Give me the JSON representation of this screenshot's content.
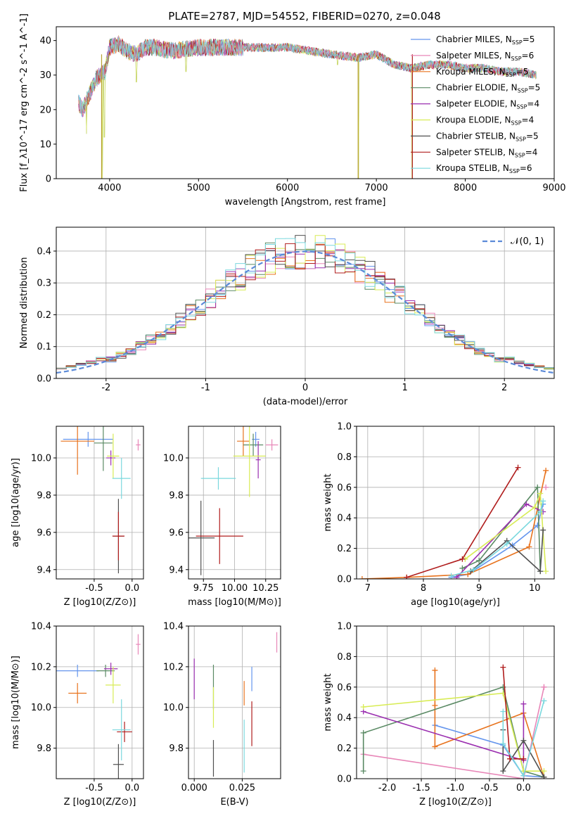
{
  "title": "PLATE=2787, MJD=54552, FIBERID=0270, z=0.048",
  "colors": [
    "#6495ed",
    "#e887b8",
    "#e8731e",
    "#5a8a64",
    "#9b30b0",
    "#d8ec55",
    "#505050",
    "#b01d1d",
    "#7ad8de"
  ],
  "legend_names": [
    "Chabrier MILES, N",
    "Salpeter MILES, N",
    "Kroupa MILES, N",
    "Chabrier ELODIE, N",
    "Salpeter ELODIE, N",
    "Kroupa ELODIE, N",
    "Chabrier STELIB, N",
    "Salpeter STELIB, N",
    "Kroupa STELIB, N"
  ],
  "legend_sub": "SSP",
  "legend_nssp": [
    "=5",
    "=6",
    "=5",
    "=5",
    "=4",
    "=4",
    "=5",
    "=4",
    "=6"
  ],
  "gauss_legend": "𝒩(0, 1)",
  "chart_data": [
    {
      "id": "spectrum",
      "type": "line",
      "xlabel": "wavelength [Angstrom, rest frame]",
      "ylabel": "Flux [f_λ10^-17 erg cm^-2 s^-1 A^-1]",
      "xlim": [
        3400,
        9000
      ],
      "ylim": [
        0,
        44
      ],
      "xticks": [
        4000,
        5000,
        6000,
        7000,
        8000,
        9000
      ],
      "yticks": [
        0,
        10,
        20,
        30,
        40
      ],
      "grid": false,
      "legend": "top-right",
      "continuum_x": [
        3650,
        3700,
        3800,
        3850,
        3900,
        3950,
        4000,
        4100,
        4200,
        4300,
        4400,
        4500,
        4700,
        5000,
        5200,
        5500,
        6000,
        6500,
        6800,
        7000,
        7200,
        7400,
        7600,
        7800,
        8000,
        8200,
        8400,
        8600,
        8800
      ],
      "continuum_y": [
        22,
        20,
        26,
        29,
        30,
        31,
        38,
        39,
        37,
        36,
        38,
        38,
        37,
        38,
        38,
        38,
        38,
        36,
        35,
        36,
        33,
        32,
        33,
        33,
        32,
        32,
        31,
        31,
        30
      ],
      "spikes": [
        [
          3920,
          0
        ],
        [
          3940,
          12
        ],
        [
          4300,
          28
        ],
        [
          4860,
          31
        ],
        [
          6563,
          33
        ],
        [
          6800,
          0
        ],
        [
          7400,
          0
        ],
        [
          3740,
          13
        ]
      ]
    },
    {
      "id": "residuals",
      "type": "step",
      "xlabel": "(data-model)/error",
      "ylabel": "Normed distribution",
      "xlim": [
        -2.5,
        2.5
      ],
      "ylim": [
        0,
        0.475
      ],
      "xticks": [
        -2,
        -1,
        0,
        1,
        2
      ],
      "yticks": [
        0.0,
        0.1,
        0.2,
        0.3,
        0.4
      ],
      "grid": true,
      "legend": "top-right",
      "bin_width": 0.1
    },
    {
      "id": "age_vs_Z",
      "type": "errorbar",
      "xlabel": "Z [log10(Z/Z⊙)]",
      "ylabel": "age [log10(age/yr)]",
      "xlim": [
        -1.0,
        0.15
      ],
      "ylim": [
        9.35,
        10.17
      ],
      "xticks": [
        -0.5,
        0.0
      ],
      "yticks": [
        9.4,
        9.6,
        9.8,
        10.0
      ],
      "grid": true,
      "points": [
        {
          "x": -0.58,
          "y": 10.1,
          "xerr": 0.33,
          "yerr": 0.04
        },
        {
          "x": 0.08,
          "y": 10.07,
          "xerr": 0.03,
          "yerr": 0.03
        },
        {
          "x": -0.72,
          "y": 10.09,
          "xerr": 0.22,
          "yerr": 0.18
        },
        {
          "x": -0.38,
          "y": 10.08,
          "xerr": 0.12,
          "yerr": 0.15
        },
        {
          "x": -0.28,
          "y": 10.0,
          "xerr": 0.06,
          "yerr": 0.04
        },
        {
          "x": -0.25,
          "y": 10.01,
          "xerr": 0.08,
          "yerr": 0.12
        },
        {
          "x": -0.18,
          "y": 9.58,
          "xerr": 0.07,
          "yerr": 0.2
        },
        {
          "x": -0.18,
          "y": 9.58,
          "xerr": 0.08,
          "yerr": 0.13
        },
        {
          "x": -0.14,
          "y": 9.89,
          "xerr": 0.12,
          "yerr": 0.11
        }
      ]
    },
    {
      "id": "age_vs_mass",
      "type": "errorbar",
      "xlabel": "mass [log10(M/M⊙)]",
      "ylabel": "",
      "xlim": [
        9.63,
        10.37
      ],
      "ylim": [
        9.35,
        10.17
      ],
      "xticks": [
        9.75,
        10.0,
        10.25
      ],
      "yticks": [
        9.4,
        9.6,
        9.8,
        10.0
      ],
      "grid": true,
      "points": [
        {
          "x": 10.17,
          "y": 10.1,
          "xerr": 0.03,
          "yerr": 0.04
        },
        {
          "x": 10.3,
          "y": 10.07,
          "xerr": 0.05,
          "yerr": 0.03
        },
        {
          "x": 10.07,
          "y": 10.09,
          "xerr": 0.05,
          "yerr": 0.08
        },
        {
          "x": 10.15,
          "y": 10.07,
          "xerr": 0.08,
          "yerr": 0.06
        },
        {
          "x": 10.19,
          "y": 9.99,
          "xerr": 0.02,
          "yerr": 0.1
        },
        {
          "x": 10.12,
          "y": 10.01,
          "xerr": 0.13,
          "yerr": 0.22
        },
        {
          "x": 9.73,
          "y": 9.57,
          "xerr": 0.11,
          "yerr": 0.2
        },
        {
          "x": 9.88,
          "y": 9.58,
          "xerr": 0.19,
          "yerr": 0.15
        },
        {
          "x": 9.87,
          "y": 9.89,
          "xerr": 0.14,
          "yerr": 0.06
        }
      ]
    },
    {
      "id": "weight_vs_age",
      "type": "line",
      "xlabel": "age [log10(age/yr)]",
      "ylabel": "mass weight",
      "xlim": [
        6.8,
        10.35
      ],
      "ylim": [
        0,
        1
      ],
      "xticks": [
        7,
        8,
        9,
        10
      ],
      "yticks": [
        0.0,
        0.2,
        0.4,
        0.6,
        0.8,
        1.0
      ],
      "grid": true,
      "series": [
        {
          "x": [
            8.5,
            8.8,
            9.6,
            10.05,
            10.15
          ],
          "y": [
            0.01,
            0.03,
            0.22,
            0.35,
            0.49
          ]
        },
        {
          "x": [
            10.2
          ],
          "y": [
            0.6
          ]
        },
        {
          "x": [
            6.9,
            7.7,
            8.8,
            9.9,
            10.2
          ],
          "y": [
            0.0,
            0.01,
            0.03,
            0.21,
            0.71
          ]
        },
        {
          "x": [
            8.7,
            9.0,
            10.05,
            10.1
          ],
          "y": [
            0.07,
            0.12,
            0.6,
            0.05
          ]
        },
        {
          "x": [
            8.6,
            9.85,
            10.15
          ],
          "y": [
            0.01,
            0.49,
            0.44
          ]
        },
        {
          "x": [
            8.75,
            10.0,
            10.1,
            10.2
          ],
          "y": [
            0.13,
            0.47,
            0.56,
            0.05
          ]
        },
        {
          "x": [
            8.85,
            9.5,
            10.1,
            10.15
          ],
          "y": [
            0.05,
            0.25,
            0.05,
            0.32
          ]
        },
        {
          "x": [
            7.7,
            8.7,
            9.7
          ],
          "y": [
            0.01,
            0.13,
            0.73
          ]
        },
        {
          "x": [
            8.5,
            8.9,
            9.5,
            10.1,
            10.15
          ],
          "y": [
            0.02,
            0.06,
            0.23,
            0.44,
            0.51
          ]
        }
      ]
    },
    {
      "id": "mass_vs_Z",
      "type": "errorbar",
      "xlabel": "Z [log10(Z/Z⊙)]",
      "ylabel": "mass [log10(M/M⊙)]",
      "xlim": [
        -1.0,
        0.15
      ],
      "ylim": [
        9.65,
        10.4
      ],
      "xticks": [
        -0.5,
        0.0
      ],
      "yticks": [
        9.8,
        10.0,
        10.2,
        10.4
      ],
      "grid": true,
      "points": [
        {
          "x": -0.72,
          "y": 10.18,
          "xerr": 0.28,
          "yerr": 0.03
        },
        {
          "x": 0.08,
          "y": 10.31,
          "xerr": 0.03,
          "yerr": 0.05
        },
        {
          "x": -0.72,
          "y": 10.07,
          "xerr": 0.12,
          "yerr": 0.05
        },
        {
          "x": -0.35,
          "y": 10.18,
          "xerr": 0.12,
          "yerr": 0.03
        },
        {
          "x": -0.28,
          "y": 10.19,
          "xerr": 0.09,
          "yerr": 0.03
        },
        {
          "x": -0.25,
          "y": 10.11,
          "xerr": 0.1,
          "yerr": 0.09
        },
        {
          "x": -0.18,
          "y": 9.72,
          "xerr": 0.07,
          "yerr": 0.1
        },
        {
          "x": -0.1,
          "y": 9.88,
          "xerr": 0.1,
          "yerr": 0.05
        },
        {
          "x": -0.14,
          "y": 9.89,
          "xerr": 0.12,
          "yerr": 0.15
        }
      ]
    },
    {
      "id": "mass_vs_EBV",
      "type": "errorbar",
      "xlabel": "E(B-V)",
      "ylabel": "",
      "xlim": [
        -0.003,
        0.045
      ],
      "ylim": [
        9.65,
        10.4
      ],
      "xticks": [
        0.0,
        0.025
      ],
      "yticks": [
        9.8,
        10.0,
        10.2,
        10.4
      ],
      "grid": true,
      "points": [
        {
          "x": 0.03,
          "y": 10.14,
          "xerr": 0,
          "yerr": 0.06
        },
        {
          "x": 0.043,
          "y": 10.32,
          "xerr": 0,
          "yerr": 0.05
        },
        {
          "x": 0.026,
          "y": 10.07,
          "xerr": 0,
          "yerr": 0.06
        },
        {
          "x": 0.01,
          "y": 10.1,
          "xerr": 0,
          "yerr": 0.11
        },
        {
          "x": 0.0,
          "y": 10.14,
          "xerr": 0,
          "yerr": 0.1
        },
        {
          "x": 0.01,
          "y": 10.0,
          "xerr": 0,
          "yerr": 0.1
        },
        {
          "x": 0.01,
          "y": 9.75,
          "xerr": 0,
          "yerr": 0.09
        },
        {
          "x": 0.03,
          "y": 9.92,
          "xerr": 0,
          "yerr": 0.11
        },
        {
          "x": 0.026,
          "y": 9.81,
          "xerr": 0,
          "yerr": 0.13
        }
      ]
    },
    {
      "id": "weight_vs_Z",
      "type": "line",
      "xlabel": "Z [log10(Z/Z⊙)]",
      "ylabel": "mass weight",
      "xlim": [
        -2.45,
        0.45
      ],
      "ylim": [
        0,
        1
      ],
      "xticks": [
        -2.0,
        -1.5,
        -1.0,
        -0.5,
        0.0
      ],
      "yticks": [
        0.0,
        0.2,
        0.4,
        0.6,
        0.8,
        1.0
      ],
      "grid": true,
      "series": [
        {
          "x": [
            -1.3,
            -0.3,
            0.0,
            0.3
          ],
          "y": [
            0.35,
            0.22,
            0.02,
            0.01
          ]
        },
        {
          "x": [
            -2.35,
            0.0,
            0.3,
            0.3
          ],
          "y": [
            0.16,
            0.0,
            0.6,
            0.6
          ]
        },
        {
          "x": [
            -1.3,
            -1.3,
            -1.3,
            0.0,
            0.3
          ],
          "y": [
            0.71,
            0.48,
            0.21,
            0.43,
            0.01
          ]
        },
        {
          "x": [
            -2.35,
            -2.35,
            -0.3,
            0.0,
            0.3
          ],
          "y": [
            0.05,
            0.3,
            0.6,
            0.05,
            0.01
          ]
        },
        {
          "x": [
            -2.35,
            0.0,
            0.0
          ],
          "y": [
            0.44,
            0.12,
            0.49
          ]
        },
        {
          "x": [
            -2.35,
            -0.3,
            0.0,
            0.3
          ],
          "y": [
            0.47,
            0.56,
            0.05,
            0.05
          ]
        },
        {
          "x": [
            -0.3,
            -0.3,
            0.0,
            0.3
          ],
          "y": [
            0.32,
            0.05,
            0.25,
            0.01
          ]
        },
        {
          "x": [
            -0.3,
            -0.2,
            0.0
          ],
          "y": [
            0.73,
            0.13,
            0.13
          ]
        },
        {
          "x": [
            -0.3,
            -0.3,
            0.0,
            0.3
          ],
          "y": [
            0.44,
            0.23,
            0.02,
            0.51
          ]
        }
      ]
    }
  ]
}
